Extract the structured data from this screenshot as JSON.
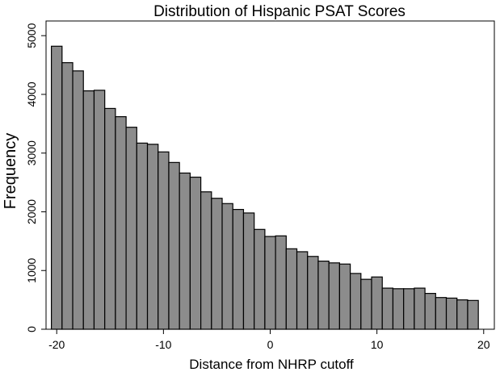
{
  "chart_data": {
    "type": "bar",
    "title": "Distribution of Hispanic PSAT Scores",
    "xlabel": "Distance from NHRP cutoff",
    "ylabel": "Frequency",
    "xlim": [
      -21,
      21
    ],
    "ylim": [
      0,
      5250
    ],
    "xticks": [
      -20,
      -10,
      0,
      10,
      20
    ],
    "yticks": [
      0,
      1000,
      2000,
      3000,
      4000,
      5000
    ],
    "bin_width": 1,
    "x": [
      -20,
      -19,
      -18,
      -17,
      -16,
      -15,
      -14,
      -13,
      -12,
      -11,
      -10,
      -9,
      -8,
      -7,
      -6,
      -5,
      -4,
      -3,
      -2,
      -1,
      0,
      1,
      2,
      3,
      4,
      5,
      6,
      7,
      8,
      9,
      10,
      11,
      12,
      13,
      14,
      15,
      16,
      17,
      18,
      19
    ],
    "values": [
      4820,
      4540,
      4400,
      4060,
      4070,
      3760,
      3620,
      3440,
      3170,
      3150,
      3020,
      2840,
      2660,
      2590,
      2340,
      2230,
      2140,
      2040,
      1980,
      1700,
      1580,
      1590,
      1370,
      1320,
      1240,
      1160,
      1130,
      1110,
      950,
      850,
      890,
      700,
      690,
      690,
      700,
      610,
      540,
      530,
      500,
      490
    ],
    "grid": false,
    "legend": "none"
  }
}
